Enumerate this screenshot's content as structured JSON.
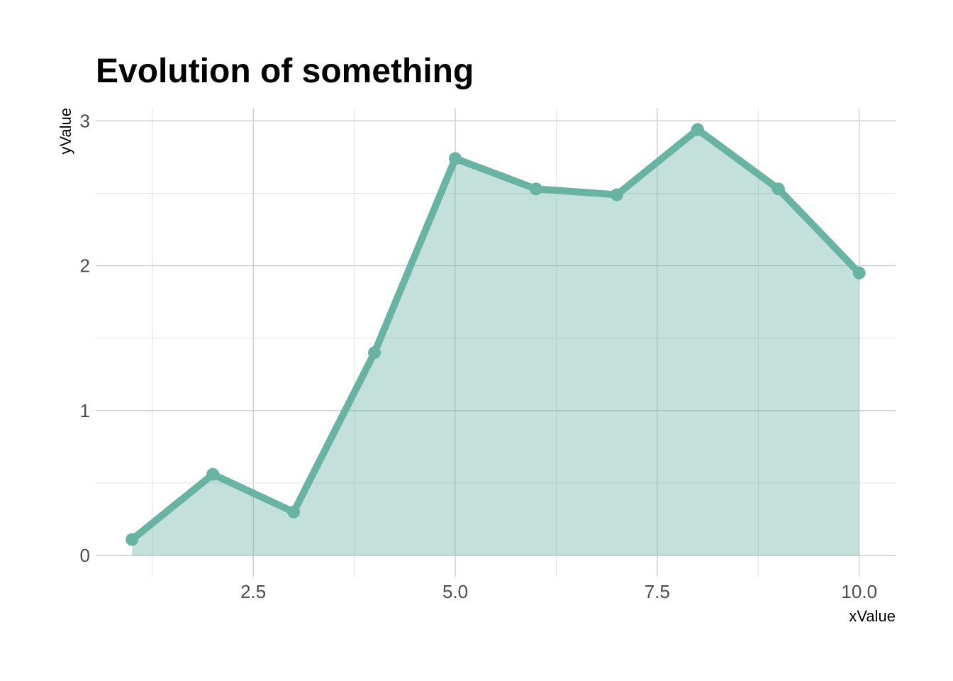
{
  "chart_data": {
    "type": "area",
    "title": "Evolution of something",
    "xlabel": "xValue",
    "ylabel": "yValue",
    "x": [
      1,
      2,
      3,
      4,
      5,
      6,
      7,
      8,
      9,
      10
    ],
    "series": [
      {
        "values": [
          0.11,
          0.56,
          0.3,
          1.4,
          2.74,
          2.53,
          2.49,
          2.94,
          2.53,
          1.95
        ]
      }
    ],
    "xlim": [
      0.55,
      10.45
    ],
    "ylim": [
      -0.147,
      3.09
    ],
    "xticks": [
      2.5,
      5.0,
      7.5,
      10.0
    ],
    "xtick_labels": [
      "2.5",
      "5.0",
      "7.5",
      "10.0"
    ],
    "yticks": [
      0,
      1,
      2,
      3
    ],
    "ytick_labels": [
      "0",
      "1",
      "2",
      "3"
    ],
    "grid": true,
    "legend": "none",
    "colors": {
      "line": "#69b3a2",
      "fill": "#69b3a2",
      "fill_opacity": 0.4
    }
  }
}
